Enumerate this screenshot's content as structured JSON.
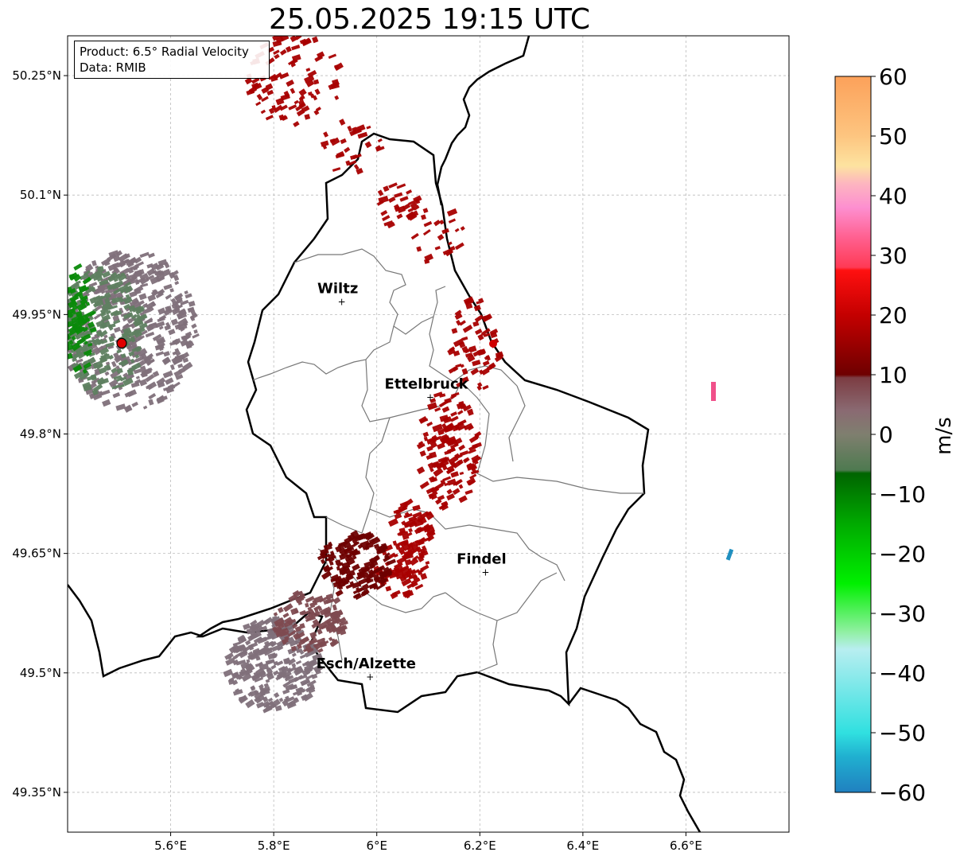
{
  "title": "25.05.2025 19:15 UTC",
  "info": {
    "product": "Product: 6.5° Radial Velocity",
    "data": "Data: RMIB"
  },
  "axes": {
    "lon_min": 5.4,
    "lon_max": 6.8,
    "lat_min": 49.3,
    "lat_max": 50.3,
    "x_ticks": [
      {
        "value": 5.6,
        "label": "5.6°E"
      },
      {
        "value": 5.8,
        "label": "5.8°E"
      },
      {
        "value": 6.0,
        "label": "6°E"
      },
      {
        "value": 6.2,
        "label": "6.2°E"
      },
      {
        "value": 6.4,
        "label": "6.4°E"
      },
      {
        "value": 6.6,
        "label": "6.6°E"
      }
    ],
    "y_ticks": [
      {
        "value": 50.25,
        "label": "50.25°N"
      },
      {
        "value": 50.1,
        "label": "50.1°N"
      },
      {
        "value": 49.95,
        "label": "49.95°N"
      },
      {
        "value": 49.8,
        "label": "49.8°N"
      },
      {
        "value": 49.65,
        "label": "49.65°N"
      },
      {
        "value": 49.5,
        "label": "49.5°N"
      },
      {
        "value": 49.35,
        "label": "49.35°N"
      }
    ],
    "grid": true
  },
  "cities": [
    {
      "name": "Wiltz",
      "lon": 5.932,
      "lat": 49.967
    },
    {
      "name": "Ettelbruck",
      "lon": 6.104,
      "lat": 49.847
    },
    {
      "name": "Findel",
      "lon": 6.211,
      "lat": 49.627
    },
    {
      "name": "Esch/Alzette",
      "lon": 5.987,
      "lat": 49.496
    }
  ],
  "radar_site": {
    "lon": 5.505,
    "lat": 49.914
  },
  "colorbar": {
    "label": "m/s",
    "min": -60,
    "max": 60,
    "ticks": [
      60,
      50,
      40,
      30,
      20,
      10,
      0,
      -10,
      -20,
      -30,
      -40,
      -50,
      -60
    ],
    "tick_labels": [
      "60",
      "50",
      "40",
      "30",
      "20",
      "10",
      "0",
      "−10",
      "−20",
      "−30",
      "−40",
      "−50",
      "−60"
    ],
    "stops": [
      {
        "v": 60,
        "c": "#fca15a"
      },
      {
        "v": 50,
        "c": "#fdc580"
      },
      {
        "v": 45,
        "c": "#fde3a0"
      },
      {
        "v": 42,
        "c": "#fdb5c0"
      },
      {
        "v": 38,
        "c": "#fd8fd0"
      },
      {
        "v": 33,
        "c": "#ff6090"
      },
      {
        "v": 28,
        "c": "#ff3a55"
      },
      {
        "v": 27.5,
        "c": "#ff1010"
      },
      {
        "v": 20,
        "c": "#c40000"
      },
      {
        "v": 10,
        "c": "#6e0000"
      },
      {
        "v": 9.5,
        "c": "#7c3c42"
      },
      {
        "v": 4,
        "c": "#8a6a72"
      },
      {
        "v": 0,
        "c": "#7f7f6f"
      },
      {
        "v": -6,
        "c": "#4e7a50"
      },
      {
        "v": -6.5,
        "c": "#006400"
      },
      {
        "v": -15,
        "c": "#00aa00"
      },
      {
        "v": -25,
        "c": "#00f000"
      },
      {
        "v": -33,
        "c": "#8ff0a0"
      },
      {
        "v": -36,
        "c": "#b8eef0"
      },
      {
        "v": -50,
        "c": "#30e0e0"
      },
      {
        "v": -54,
        "c": "#20b0d0"
      },
      {
        "v": -60,
        "c": "#2080c0"
      }
    ]
  },
  "echo_colors": {
    "strong_outbound": "#a80000",
    "dark_outbound": "#6e0000",
    "weak_outbound": "#7e4a50",
    "near_zero": "#80707a",
    "inbound_weak": "#5e8060",
    "inbound": "#0a8a0a",
    "pink": "#f0508a",
    "cyan": "#2090c0"
  },
  "echo_regions": [
    {
      "lon": 5.84,
      "lat": 50.245,
      "dlon": 0.09,
      "dlat": 0.06,
      "count": 90,
      "color": "strong_outbound"
    },
    {
      "lon": 5.95,
      "lat": 50.16,
      "dlon": 0.06,
      "dlat": 0.035,
      "count": 28,
      "color": "strong_outbound"
    },
    {
      "lon": 6.04,
      "lat": 50.09,
      "dlon": 0.04,
      "dlat": 0.03,
      "count": 30,
      "color": "strong_outbound"
    },
    {
      "lon": 6.12,
      "lat": 50.05,
      "dlon": 0.05,
      "dlat": 0.04,
      "count": 22,
      "color": "strong_outbound"
    },
    {
      "lon": 6.19,
      "lat": 49.91,
      "dlon": 0.05,
      "dlat": 0.06,
      "count": 60,
      "color": "strong_outbound"
    },
    {
      "lon": 6.14,
      "lat": 49.78,
      "dlon": 0.06,
      "dlat": 0.075,
      "count": 140,
      "color": "strong_outbound"
    },
    {
      "lon": 6.07,
      "lat": 49.68,
      "dlon": 0.04,
      "dlat": 0.04,
      "count": 70,
      "color": "strong_outbound"
    },
    {
      "lon": 6.05,
      "lat": 49.63,
      "dlon": 0.05,
      "dlat": 0.035,
      "count": 60,
      "color": "strong_outbound"
    },
    {
      "lon": 5.96,
      "lat": 49.635,
      "dlon": 0.07,
      "dlat": 0.04,
      "count": 150,
      "color": "dark_outbound"
    },
    {
      "lon": 5.8,
      "lat": 49.51,
      "dlon": 0.09,
      "dlat": 0.06,
      "count": 260,
      "color": "near_zero"
    },
    {
      "lon": 5.87,
      "lat": 49.565,
      "dlon": 0.07,
      "dlat": 0.04,
      "count": 120,
      "color": "weak_outbound"
    },
    {
      "lon": 5.52,
      "lat": 49.93,
      "dlon": 0.13,
      "dlat": 0.1,
      "count": 420,
      "color": "near_zero"
    },
    {
      "lon": 5.47,
      "lat": 49.93,
      "dlon": 0.08,
      "dlat": 0.08,
      "count": 200,
      "color": "inbound_weak"
    },
    {
      "lon": 5.42,
      "lat": 49.94,
      "dlon": 0.03,
      "dlat": 0.07,
      "count": 70,
      "color": "inbound"
    }
  ]
}
